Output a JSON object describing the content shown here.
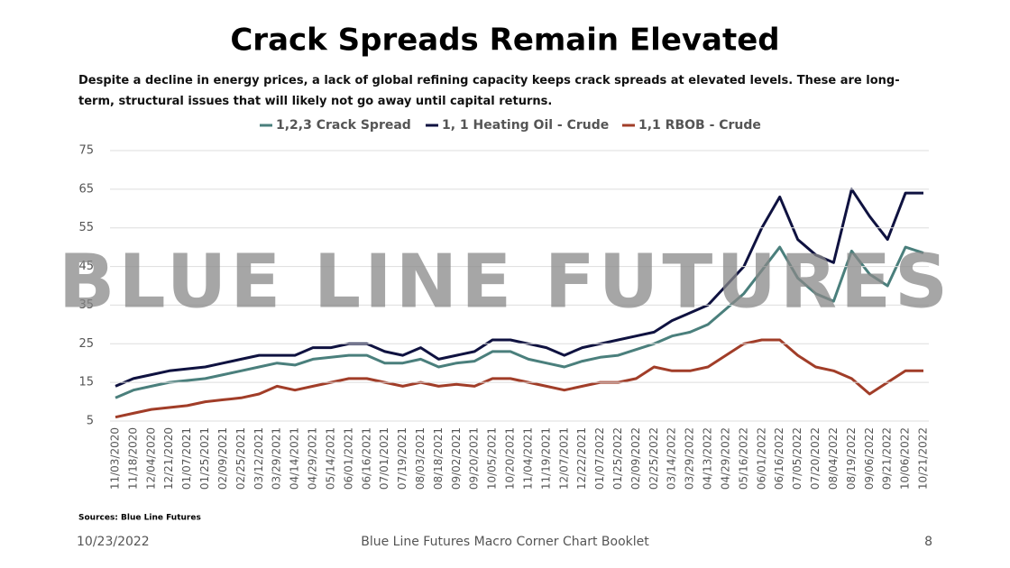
{
  "chart_data": {
    "type": "line",
    "title": "Crack Spreads Remain Elevated",
    "subtitle": "Despite a decline in energy prices, a lack of global refining capacity keeps crack spreads at elevated levels. These are long-term, structural issues that will likely not go away until capital returns.",
    "watermark": "BLUE LINE FUTURES",
    "source": "Sources: Blue Line Futures",
    "footer_date": "10/23/2022",
    "footer_title": "Blue Line Futures Macro Corner Chart Booklet",
    "page_number": "8",
    "categories": [
      "11/03/2020",
      "11/18/2020",
      "12/04/2020",
      "12/21/2020",
      "01/07/2021",
      "01/25/2021",
      "02/09/2021",
      "02/25/2021",
      "03/12/2021",
      "03/29/2021",
      "04/14/2021",
      "04/29/2021",
      "05/14/2021",
      "06/01/2021",
      "06/16/2021",
      "07/01/2021",
      "07/19/2021",
      "08/03/2021",
      "08/18/2021",
      "09/02/2021",
      "09/20/2021",
      "10/05/2021",
      "10/20/2021",
      "11/04/2021",
      "11/19/2021",
      "12/07/2021",
      "12/22/2021",
      "01/07/2022",
      "01/25/2022",
      "02/09/2022",
      "02/25/2022",
      "03/14/2022",
      "03/29/2022",
      "04/13/2022",
      "04/29/2022",
      "05/16/2022",
      "06/01/2022",
      "06/16/2022",
      "07/05/2022",
      "07/20/2022",
      "08/04/2022",
      "08/19/2022",
      "09/06/2022",
      "09/21/2022",
      "10/06/2022",
      "10/21/2022"
    ],
    "series": [
      {
        "name": "1,2,3 Crack Spread",
        "color": "#4a7f7c",
        "values": [
          11,
          13,
          14,
          15,
          15.5,
          16,
          17,
          18,
          19,
          20,
          19.5,
          21,
          21.5,
          22,
          22,
          20,
          20,
          21,
          19,
          20,
          20.5,
          23,
          23,
          21,
          20,
          19,
          20.5,
          21.5,
          22,
          23.5,
          25,
          27,
          28,
          30,
          34,
          38,
          44,
          50,
          42,
          38,
          36,
          49,
          43,
          40,
          50,
          48.5
        ]
      },
      {
        "name": "1, 1 Heating Oil - Crude",
        "color": "#0f1240",
        "values": [
          14,
          16,
          17,
          18,
          18.5,
          19,
          20,
          21,
          22,
          22,
          22,
          24,
          24,
          25,
          25,
          23,
          22,
          24,
          21,
          22,
          23,
          26,
          26,
          25,
          24,
          22,
          24,
          25,
          26,
          27,
          28,
          31,
          33,
          35,
          40,
          45,
          55,
          63,
          52,
          48,
          46,
          65,
          58,
          52,
          64,
          64
        ]
      },
      {
        "name": "1,1 RBOB - Crude",
        "color": "#a13d28",
        "values": [
          6,
          7,
          8,
          8.5,
          9,
          10,
          10.5,
          11,
          12,
          14,
          13,
          14,
          15,
          16,
          16,
          15,
          14,
          15,
          14,
          14.5,
          14,
          16,
          16,
          15,
          14,
          13,
          14,
          15,
          15,
          16,
          19,
          18,
          18,
          19,
          22,
          25,
          26,
          26,
          22,
          19,
          18,
          16,
          12,
          15,
          18,
          18
        ]
      }
    ],
    "ylim": [
      5,
      75
    ],
    "yticks": [
      5,
      15,
      25,
      35,
      45,
      55,
      65,
      75
    ],
    "grid": true
  }
}
